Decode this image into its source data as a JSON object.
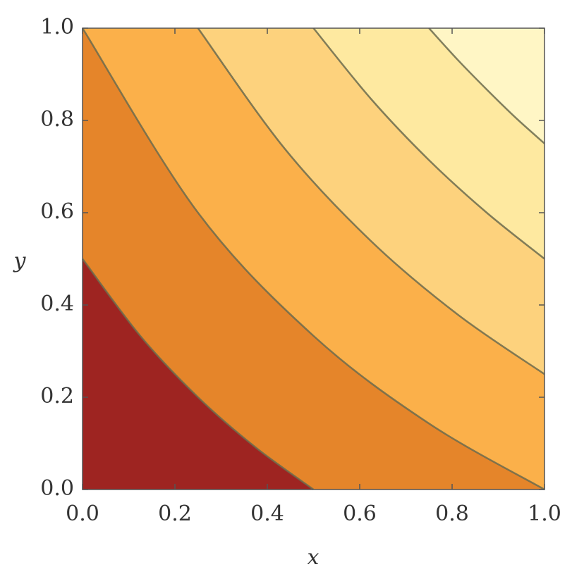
{
  "chart_data": {
    "type": "contour",
    "x_label": "x",
    "y_label": "y",
    "xlim": [
      0,
      1
    ],
    "ylim": [
      0,
      1
    ],
    "xticks": [
      {
        "value": 0,
        "label": "0.0"
      },
      0.2,
      0.4,
      0.6,
      0.8,
      {
        "value": 1,
        "label": "1.0"
      }
    ],
    "yticks": [
      {
        "value": 0,
        "label": "0.0"
      },
      0.2,
      0.4,
      0.6,
      0.8,
      {
        "value": 1,
        "label": "1.0"
      }
    ],
    "fill_colors": [
      "#9e2421",
      "#e5852a",
      "#fbb04a",
      "#fdd27d",
      "#fee9a0",
      "#fff6c5"
    ],
    "line_color": "#6b6b4e",
    "contours": [
      {
        "x": [
          0,
          0.125,
          0.25,
          0.375,
          0.5
        ],
        "y": [
          0.5,
          0.333,
          0.2,
          0.091,
          0
        ]
      },
      {
        "x": [
          0,
          0.25,
          0.5,
          0.75,
          1
        ],
        "y": [
          1,
          0.6,
          0.333,
          0.143,
          0
        ]
      },
      {
        "x": [
          0.25,
          0.4375,
          0.625,
          0.8125,
          1
        ],
        "y": [
          1,
          0.739,
          0.538,
          0.379,
          0.25
        ]
      },
      {
        "x": [
          0.5,
          0.625,
          0.75,
          0.875,
          1
        ],
        "y": [
          1,
          0.846,
          0.714,
          0.6,
          0.5
        ]
      },
      {
        "x": [
          0.75,
          0.8125,
          0.875,
          0.9375,
          1
        ],
        "y": [
          1,
          0.931,
          0.867,
          0.806,
          0.75
        ]
      }
    ]
  }
}
